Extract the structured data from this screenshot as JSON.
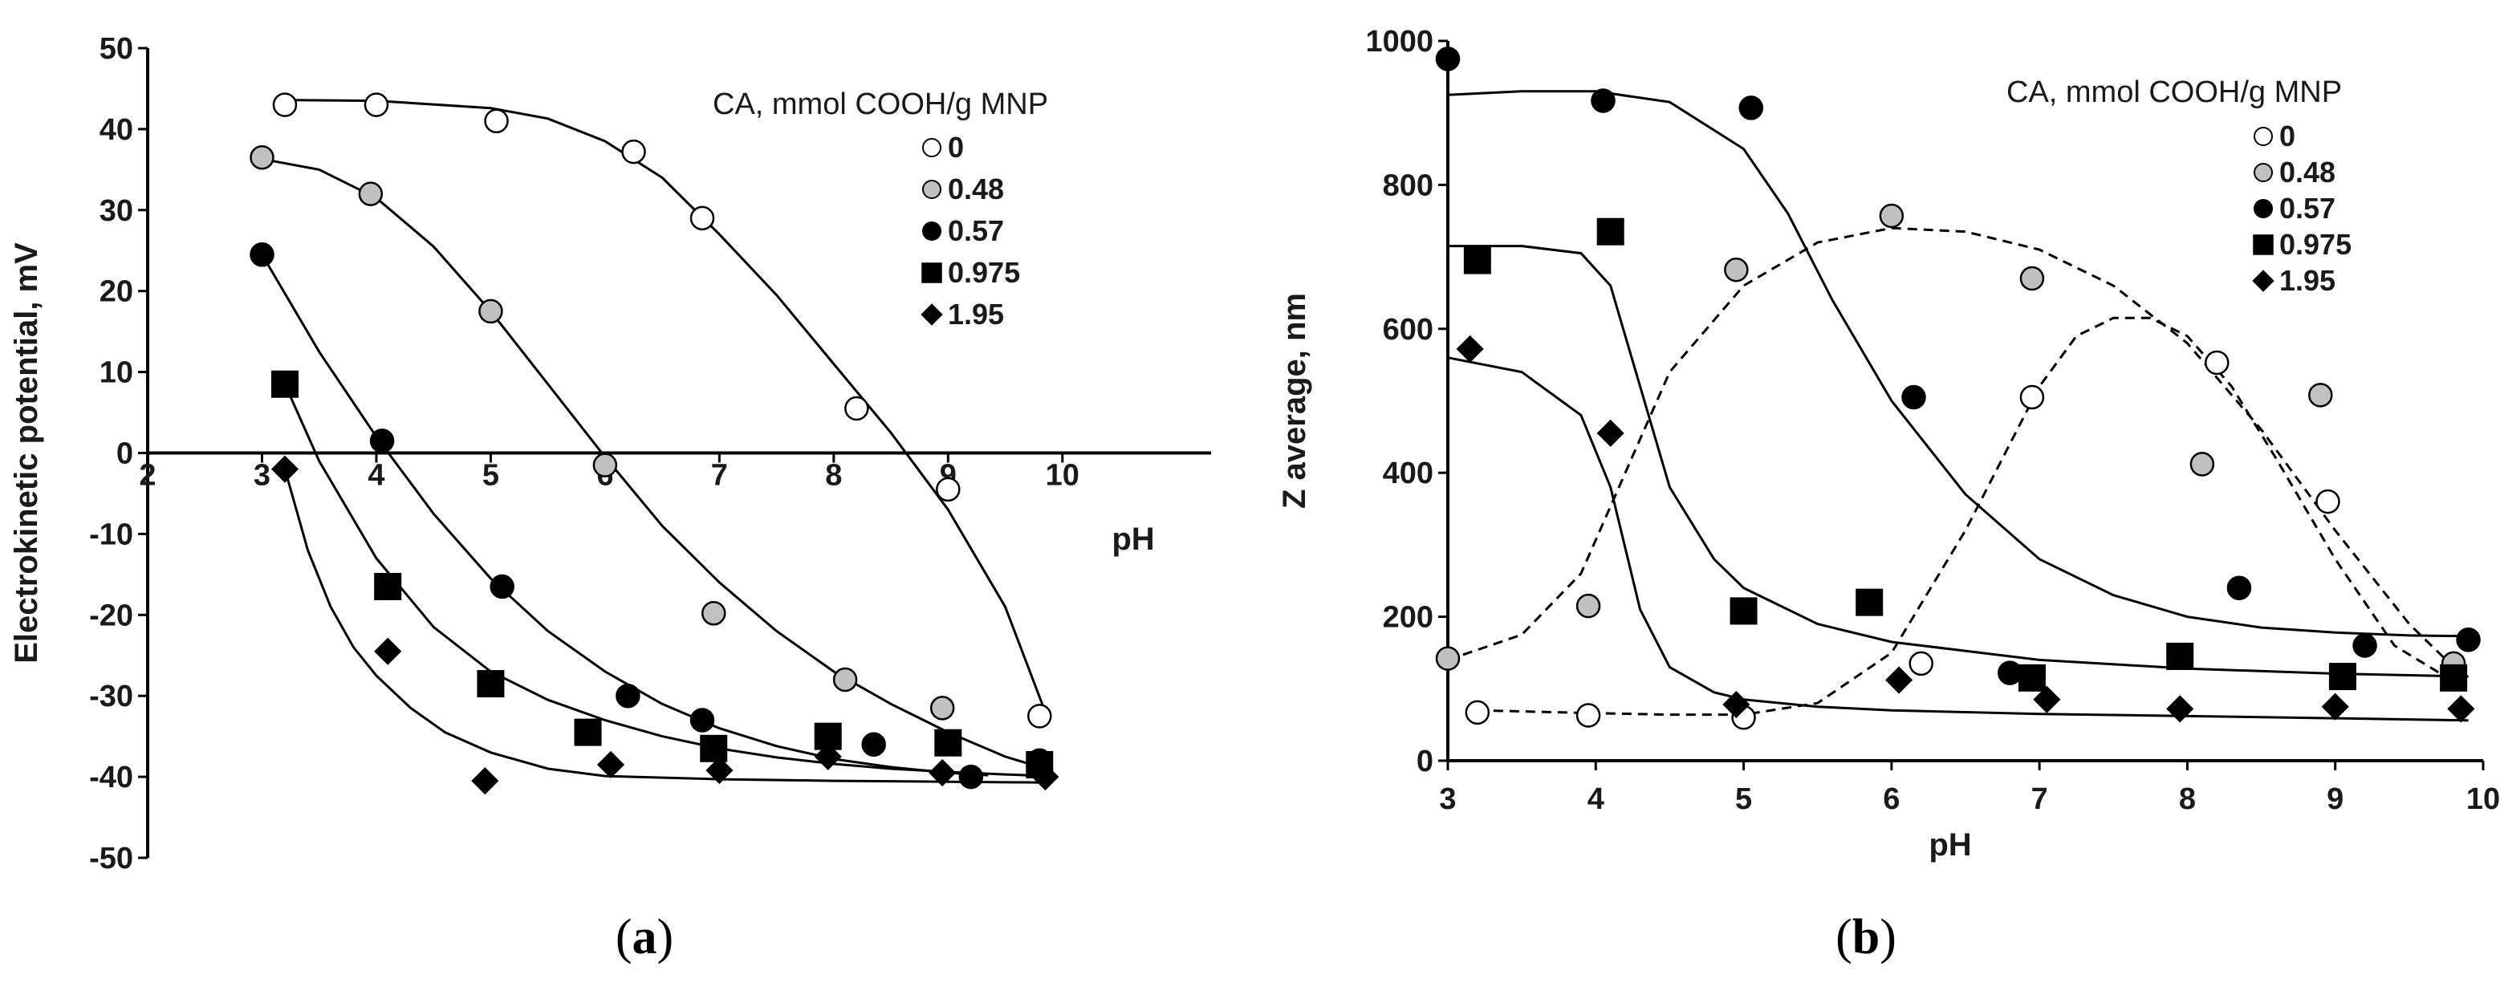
{
  "chart_data": [
    {
      "panel_label": "(a)",
      "panel_letter": "a",
      "type": "scatter",
      "xlabel": "pH",
      "ylabel": "Electrokinetic potential, mV",
      "xlim": [
        2,
        11.3
      ],
      "ylim": [
        -50,
        50
      ],
      "x_ticks": [
        2,
        3,
        4,
        5,
        6,
        7,
        8,
        9,
        10
      ],
      "y_ticks": [
        -50,
        -40,
        -30,
        -20,
        -10,
        0,
        10,
        20,
        30,
        40,
        50
      ],
      "legend_title": "CA, mmol COOH/g MNP",
      "series": [
        {
          "name": "0",
          "marker": "circle",
          "fill": "#ffffff",
          "x": [
            3.2,
            4.0,
            5.05,
            6.25,
            6.85,
            8.2,
            9.0,
            9.8
          ],
          "y": [
            43,
            43,
            41,
            37.2,
            29,
            5.5,
            -4.5,
            -32.5
          ],
          "curve_x": [
            3.2,
            4.0,
            5.0,
            5.5,
            6.0,
            6.5,
            7.0,
            7.5,
            8.0,
            8.5,
            9.0,
            9.5,
            9.85
          ],
          "curve_y": [
            43.6,
            43.5,
            42.6,
            41.3,
            38.5,
            34,
            27,
            19.5,
            11,
            2.5,
            -7,
            -19,
            -32
          ]
        },
        {
          "name": "0.48",
          "marker": "circle",
          "fill": "#c0c0c0",
          "x": [
            3.0,
            3.95,
            5.0,
            6.0,
            6.95,
            8.1,
            8.95,
            9.8
          ],
          "y": [
            36.5,
            32,
            17.5,
            -1.5,
            -19.8,
            -28,
            -31.5,
            -38
          ],
          "curve_x": [
            3.0,
            3.5,
            4.0,
            4.5,
            5.0,
            5.5,
            6.0,
            6.5,
            7.0,
            7.5,
            8.0,
            8.5,
            9.0,
            9.5,
            9.85
          ],
          "curve_y": [
            36.3,
            35,
            31.5,
            25.5,
            17.5,
            8.5,
            -0.5,
            -9,
            -16,
            -22,
            -27,
            -31,
            -34.5,
            -37.5,
            -39
          ]
        },
        {
          "name": "0.57",
          "marker": "circle",
          "fill": "#000000",
          "x": [
            3.0,
            4.05,
            5.1,
            6.2,
            6.85,
            8.35,
            9.2,
            9.8
          ],
          "y": [
            24.5,
            1.5,
            -16.5,
            -30,
            -33,
            -36,
            -40,
            -38
          ],
          "curve_x": [
            3.0,
            3.5,
            4.0,
            4.5,
            5.0,
            5.5,
            6.0,
            6.5,
            7.0,
            7.5,
            8.0,
            8.5,
            9.0,
            9.35
          ],
          "curve_y": [
            24.5,
            12.5,
            2,
            -7.5,
            -15.5,
            -22,
            -27,
            -31,
            -34,
            -36.2,
            -37.8,
            -38.8,
            -39.5,
            -39.8
          ]
        },
        {
          "name": "0.975",
          "marker": "square",
          "fill": "#000000",
          "x": [
            3.2,
            4.1,
            5.0,
            5.85,
            6.95,
            7.95,
            9.0,
            9.8
          ],
          "y": [
            8.5,
            -16.5,
            -28.5,
            -34.5,
            -36.5,
            -35,
            -35.8,
            -38.5
          ],
          "curve_x": [
            3.2,
            3.5,
            4.0,
            4.5,
            5.0,
            5.5,
            6.0,
            6.5,
            7.0,
            7.5,
            8.0,
            8.5,
            9.0,
            9.5,
            9.9
          ],
          "curve_y": [
            8.5,
            -1,
            -13,
            -21.5,
            -27,
            -30.5,
            -33,
            -35,
            -36.5,
            -37.6,
            -38.4,
            -39,
            -39.4,
            -39.7,
            -39.9
          ]
        },
        {
          "name": "1.95",
          "marker": "diamond",
          "fill": "#000000",
          "x": [
            3.2,
            4.1,
            4.95,
            6.05,
            7.0,
            7.95,
            8.95,
            9.85
          ],
          "y": [
            -2,
            -24.5,
            -40.5,
            -38.5,
            -39.2,
            -37.5,
            -39.5,
            -40
          ],
          "curve_x": [
            3.2,
            3.4,
            3.6,
            3.8,
            4.0,
            4.3,
            4.6,
            5.0,
            5.5,
            6.0,
            7.0,
            8.0,
            9.0,
            9.85
          ],
          "curve_y": [
            -2,
            -12,
            -19,
            -24,
            -27.5,
            -31.5,
            -34.5,
            -37,
            -39,
            -39.9,
            -40.3,
            -40.5,
            -40.6,
            -40.7
          ]
        }
      ]
    },
    {
      "panel_label": "(b)",
      "panel_letter": "b",
      "type": "scatter",
      "xlabel": "pH",
      "ylabel": "Z average, nm",
      "xlim": [
        3,
        10
      ],
      "ylim": [
        0,
        1000
      ],
      "x_ticks": [
        3,
        4,
        5,
        6,
        7,
        8,
        9,
        10
      ],
      "y_ticks": [
        0,
        200,
        400,
        600,
        800,
        1000
      ],
      "legend_title": "CA, mmol COOH/g MNP",
      "series": [
        {
          "name": "0",
          "marker": "circle",
          "fill": "#ffffff",
          "x": [
            3.2,
            3.95,
            5.0,
            6.2,
            6.95,
            8.2,
            8.95,
            9.8
          ],
          "y": [
            67,
            63,
            60,
            135,
            505,
            553,
            360,
            130
          ],
          "curve_style": "dashed",
          "curve_x": [
            3.2,
            4.0,
            4.5,
            5.0,
            5.5,
            6.0,
            6.5,
            7.0,
            7.25,
            7.5,
            7.75,
            8.0,
            8.3,
            8.6,
            9.0,
            9.4,
            9.8
          ],
          "curve_y": [
            70,
            66,
            64,
            64,
            80,
            150,
            320,
            520,
            590,
            615,
            615,
            590,
            520,
            420,
            280,
            160,
            110
          ]
        },
        {
          "name": "0.48",
          "marker": "circle",
          "fill": "#c0c0c0",
          "x": [
            3.0,
            3.95,
            4.95,
            6.0,
            6.95,
            8.1,
            8.9,
            9.8
          ],
          "y": [
            142,
            215,
            682,
            757,
            670,
            412,
            508,
            135
          ],
          "curve_style": "dashed",
          "curve_x": [
            3.0,
            3.5,
            3.9,
            4.2,
            4.5,
            5.0,
            5.5,
            6.0,
            6.5,
            7.0,
            7.5,
            8.0,
            8.5,
            9.0,
            9.5,
            9.85
          ],
          "curve_y": [
            140,
            175,
            260,
            400,
            540,
            660,
            720,
            740,
            735,
            710,
            660,
            580,
            460,
            320,
            190,
            120
          ]
        },
        {
          "name": "0.57",
          "marker": "circle",
          "fill": "#000000",
          "x": [
            3.0,
            4.05,
            5.05,
            6.15,
            6.8,
            8.35,
            9.2,
            9.9
          ],
          "y": [
            975,
            917,
            907,
            505,
            122,
            240,
            160,
            168
          ],
          "curve_style": "solid",
          "curve_x": [
            3.0,
            3.5,
            4.0,
            4.5,
            5.0,
            5.3,
            5.6,
            6.0,
            6.5,
            7.0,
            7.5,
            8.0,
            8.5,
            9.0,
            9.5,
            9.9
          ],
          "curve_y": [
            925,
            930,
            930,
            915,
            850,
            760,
            640,
            500,
            370,
            280,
            230,
            200,
            185,
            178,
            174,
            173
          ]
        },
        {
          "name": "0.975",
          "marker": "square",
          "fill": "#000000",
          "x": [
            3.2,
            4.1,
            5.0,
            5.85,
            6.95,
            7.95,
            9.05,
            9.8
          ],
          "y": [
            695,
            735,
            208,
            220,
            115,
            145,
            117,
            115
          ],
          "curve_style": "solid",
          "curve_x": [
            3.0,
            3.5,
            3.9,
            4.1,
            4.3,
            4.5,
            4.8,
            5.0,
            5.5,
            6.0,
            7.0,
            8.0,
            9.0,
            9.9
          ],
          "curve_y": [
            715,
            715,
            705,
            660,
            520,
            380,
            280,
            240,
            190,
            165,
            140,
            128,
            121,
            117
          ]
        },
        {
          "name": "1.95",
          "marker": "diamond",
          "fill": "#000000",
          "x": [
            3.15,
            4.1,
            4.95,
            6.05,
            7.05,
            7.95,
            9.0,
            9.85
          ],
          "y": [
            572,
            455,
            78,
            112,
            85,
            72,
            75,
            72
          ],
          "curve_style": "solid",
          "curve_x": [
            3.0,
            3.5,
            3.9,
            4.1,
            4.3,
            4.5,
            4.8,
            5.0,
            5.5,
            6.0,
            7.0,
            8.0,
            9.0,
            9.9
          ],
          "curve_y": [
            560,
            540,
            480,
            380,
            210,
            130,
            95,
            85,
            75,
            70,
            65,
            62,
            59,
            56
          ]
        }
      ]
    }
  ]
}
